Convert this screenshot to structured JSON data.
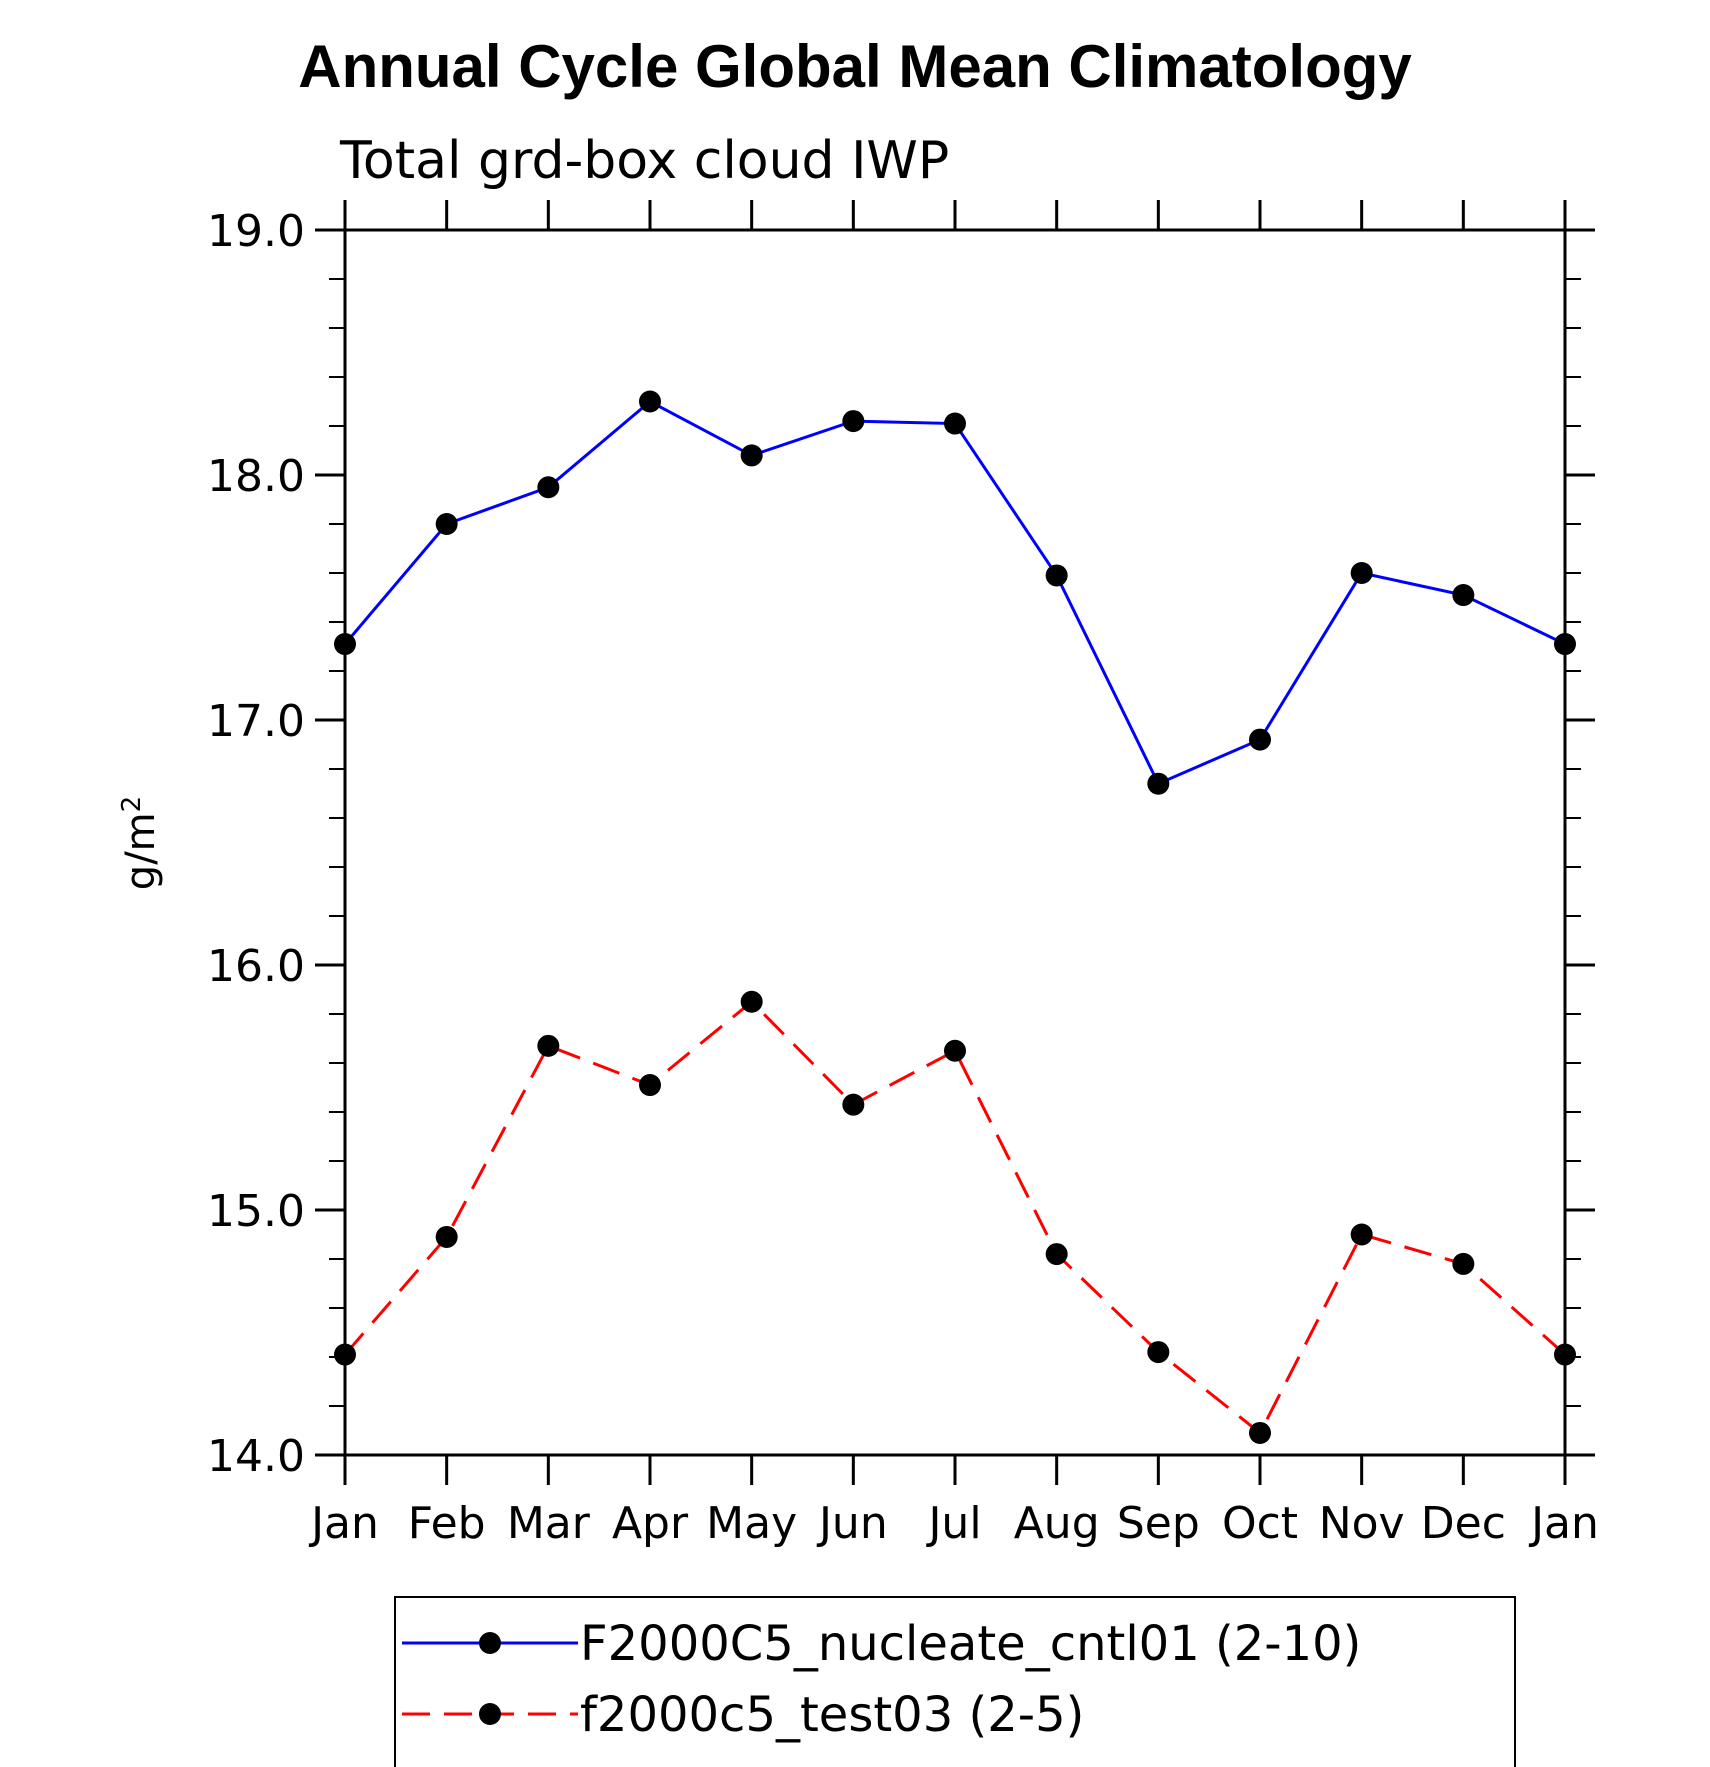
{
  "chart_data": {
    "type": "line",
    "title": "Annual Cycle Global Mean Climatology",
    "subtitle": "Total grd-box cloud IWP",
    "ylabel_base": "g/m",
    "ylabel_sup": "2",
    "xlabel": "",
    "categories": [
      "Jan",
      "Feb",
      "Mar",
      "Apr",
      "May",
      "Jun",
      "Jul",
      "Aug",
      "Sep",
      "Oct",
      "Nov",
      "Dec",
      "Jan"
    ],
    "ylim": [
      14.0,
      19.0
    ],
    "yticks": [
      "14.0",
      "15.0",
      "16.0",
      "17.0",
      "18.0",
      "19.0"
    ],
    "series": [
      {
        "name": "F2000C5_nucleate_cntl01 (2-10)",
        "color": "#0000ff",
        "dash": "solid",
        "values": [
          17.31,
          17.8,
          17.95,
          18.3,
          18.08,
          18.22,
          18.21,
          17.59,
          16.74,
          16.92,
          17.6,
          17.51,
          17.31
        ]
      },
      {
        "name": "f2000c5_test03 (2-5)",
        "color": "#ff0000",
        "dash": "dashed",
        "values": [
          14.41,
          14.89,
          15.67,
          15.51,
          15.85,
          15.43,
          15.65,
          14.82,
          14.42,
          14.09,
          14.9,
          14.78,
          14.41
        ]
      }
    ],
    "legend_position": "bottom-center",
    "marker_color": "#000000"
  }
}
